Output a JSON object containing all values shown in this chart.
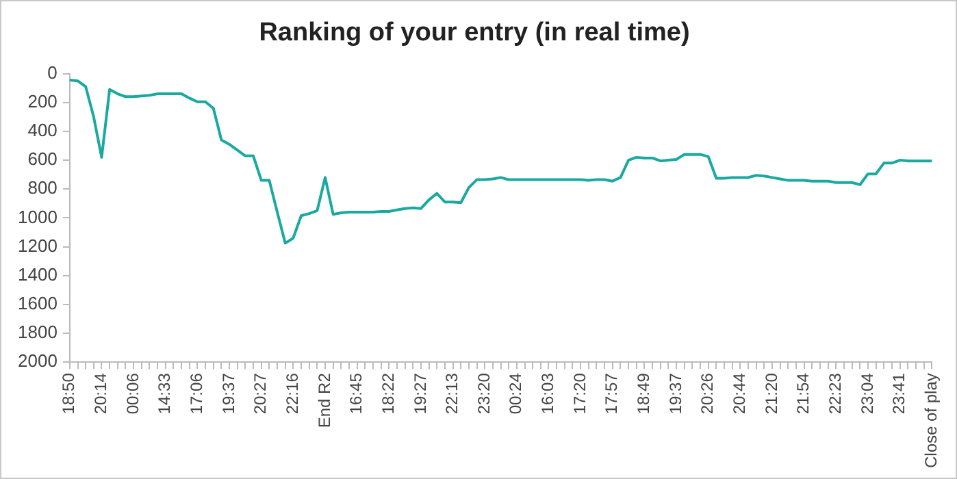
{
  "chart_data": {
    "type": "line",
    "title": "Ranking of your entry (in real time)",
    "categories": [
      "18:50",
      null,
      null,
      null,
      "20:14",
      null,
      null,
      null,
      "00:06",
      null,
      null,
      null,
      "14:33",
      null,
      null,
      null,
      "17:06",
      null,
      null,
      null,
      "19:37",
      null,
      null,
      null,
      "20:27",
      null,
      null,
      null,
      "22:16",
      null,
      null,
      null,
      "End R2",
      null,
      null,
      null,
      "16:45",
      null,
      null,
      null,
      "18:22",
      null,
      null,
      null,
      "19:27",
      null,
      null,
      null,
      "22:13",
      null,
      null,
      null,
      "23:20",
      null,
      null,
      null,
      "00:24",
      null,
      null,
      null,
      "16:03",
      null,
      null,
      null,
      "17:20",
      null,
      null,
      null,
      "17:57",
      null,
      null,
      null,
      "18:49",
      null,
      null,
      null,
      "19:37",
      null,
      null,
      null,
      "20:26",
      null,
      null,
      null,
      "20:44",
      null,
      null,
      null,
      "21:20",
      null,
      null,
      null,
      "21:54",
      null,
      null,
      null,
      "22:23",
      null,
      null,
      null,
      "23:04",
      null,
      null,
      null,
      "23:41",
      null,
      null,
      null,
      "Close of play"
    ],
    "values": [
      45,
      50,
      90,
      300,
      580,
      110,
      140,
      160,
      160,
      155,
      150,
      140,
      140,
      140,
      140,
      170,
      195,
      195,
      240,
      460,
      490,
      530,
      570,
      570,
      740,
      740,
      960,
      1175,
      1140,
      985,
      970,
      950,
      720,
      975,
      965,
      960,
      960,
      960,
      960,
      955,
      955,
      945,
      935,
      930,
      935,
      875,
      830,
      890,
      890,
      895,
      790,
      735,
      735,
      730,
      720,
      735,
      735,
      735,
      735,
      735,
      735,
      735,
      735,
      735,
      735,
      740,
      735,
      735,
      745,
      720,
      600,
      580,
      585,
      585,
      605,
      600,
      595,
      560,
      560,
      560,
      575,
      725,
      725,
      720,
      720,
      720,
      705,
      710,
      720,
      730,
      740,
      740,
      740,
      745,
      745,
      745,
      755,
      755,
      755,
      770,
      695,
      695,
      620,
      620,
      600,
      605,
      605,
      605,
      605
    ],
    "color": "#1aa9a0",
    "ylim": [
      2000,
      0
    ],
    "yticks": [
      0,
      200,
      400,
      600,
      800,
      1000,
      1200,
      1400,
      1600,
      1800,
      2000
    ],
    "grid": false,
    "marker": "none",
    "legend": false
  }
}
